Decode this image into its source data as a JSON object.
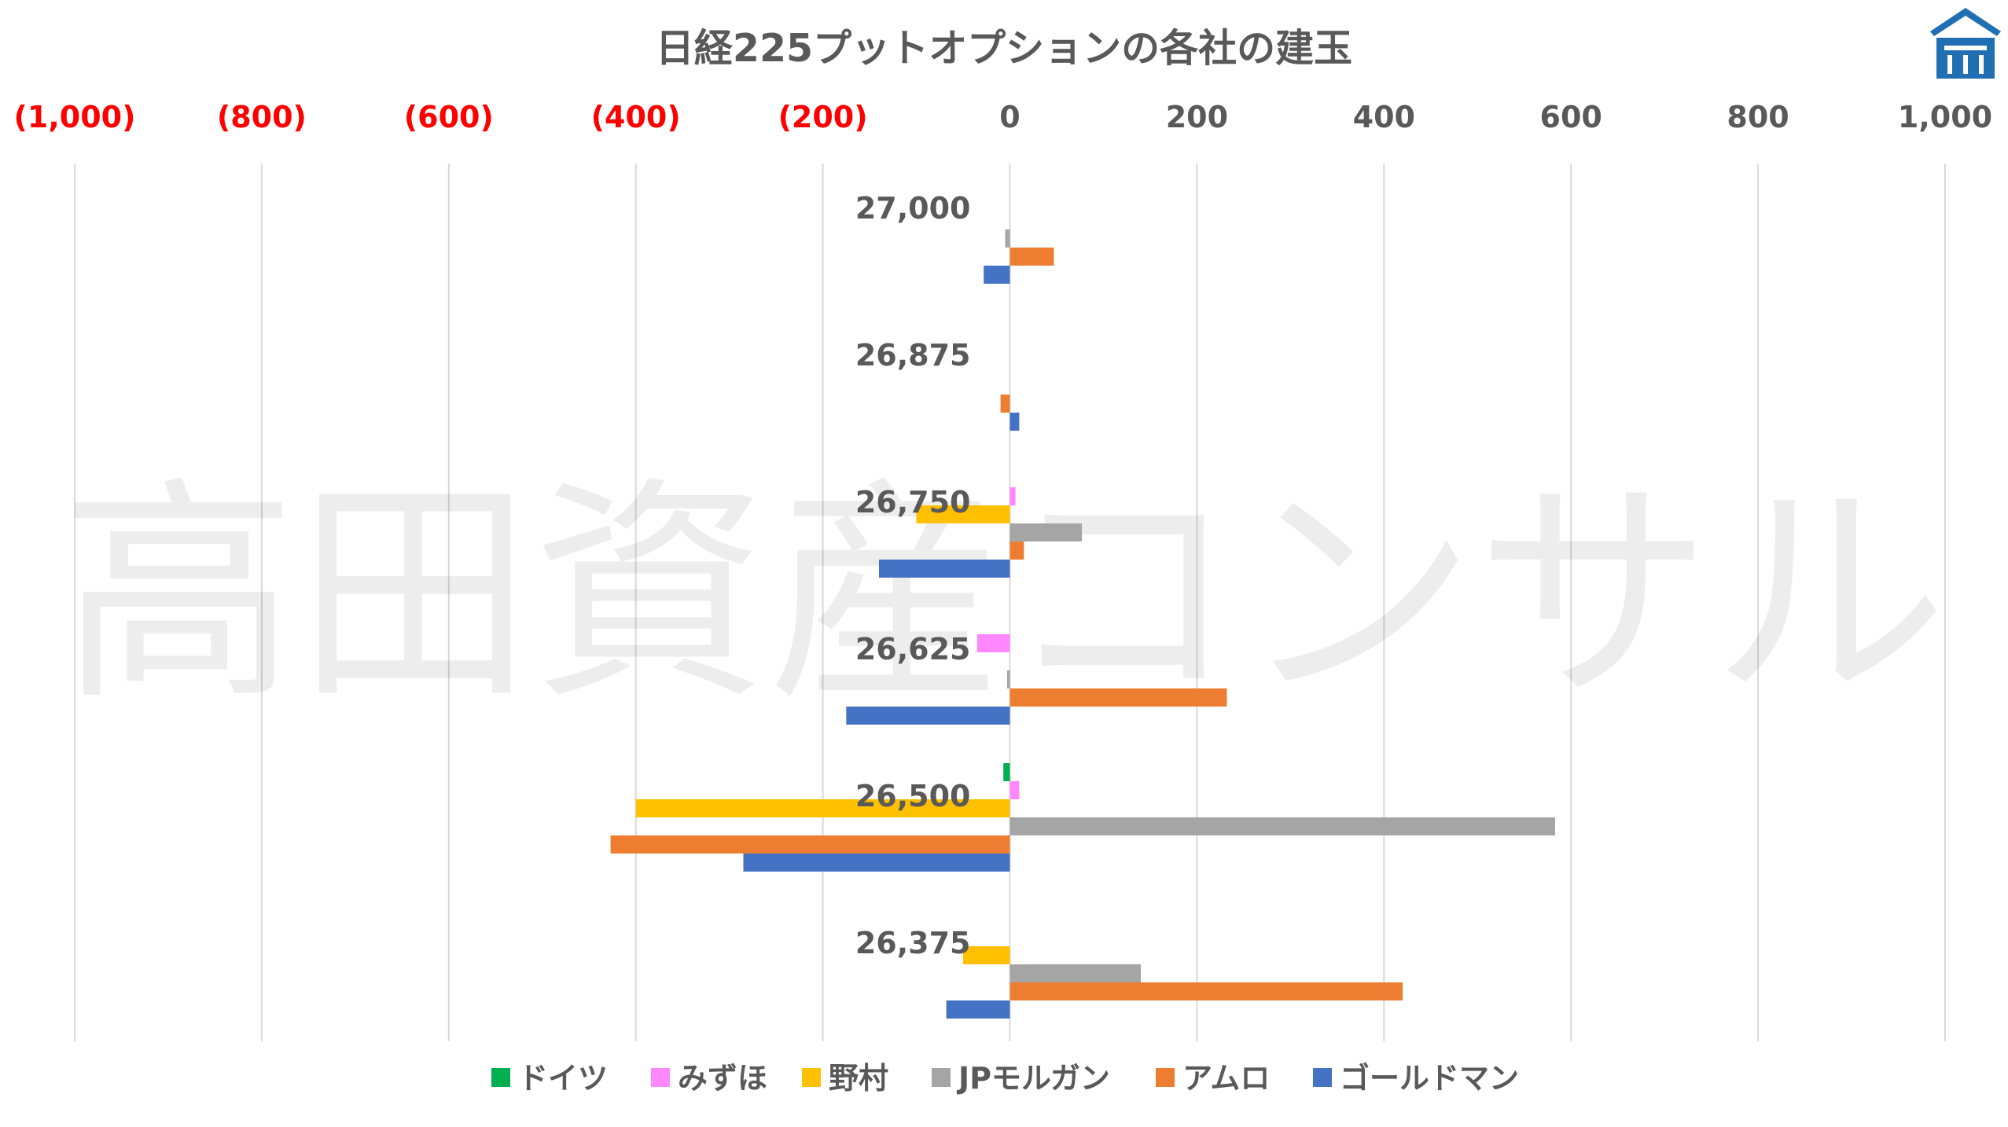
{
  "chart_data": {
    "type": "bar",
    "orientation": "horizontal",
    "title": "日経225プットオプションの各社の建玉",
    "watermark": "高田資産コンサル",
    "logo": "takada-logo-icon",
    "xlim": [
      -1000,
      1000
    ],
    "x_ticks": [
      -1000,
      -800,
      -600,
      -400,
      -200,
      0,
      200,
      400,
      600,
      800,
      1000
    ],
    "x_tick_labels": [
      "(1,000)",
      "(800)",
      "(600)",
      "(400)",
      "(200)",
      "0",
      "200",
      "400",
      "600",
      "800",
      "1,000"
    ],
    "x_axis_position": "top",
    "negative_tick_color": "#ff0000",
    "positive_tick_color": "#595959",
    "grid": true,
    "legend_position": "bottom",
    "categories": [
      "27,000",
      "26,875",
      "26,750",
      "26,625",
      "26,500",
      "26,375"
    ],
    "series": [
      {
        "name": "ドイツ",
        "color": "#00b050",
        "values": [
          0,
          0,
          0,
          0,
          -7,
          0
        ]
      },
      {
        "name": "みずほ",
        "color": "#ff88ff",
        "values": [
          0,
          0,
          6,
          -35,
          10,
          0
        ]
      },
      {
        "name": "野村",
        "color": "#ffc000",
        "values": [
          0,
          0,
          -100,
          0,
          -400,
          -50
        ]
      },
      {
        "name": "JPモルガン",
        "color": "#a5a5a5",
        "values": [
          -5,
          0,
          77,
          -3,
          583,
          140
        ]
      },
      {
        "name": "アムロ",
        "color": "#ed7d31",
        "values": [
          47,
          -10,
          15,
          232,
          -427,
          420
        ]
      },
      {
        "name": "ゴールドマン",
        "color": "#4472c4",
        "values": [
          -28,
          10,
          -140,
          -175,
          -285,
          -68
        ]
      }
    ]
  }
}
